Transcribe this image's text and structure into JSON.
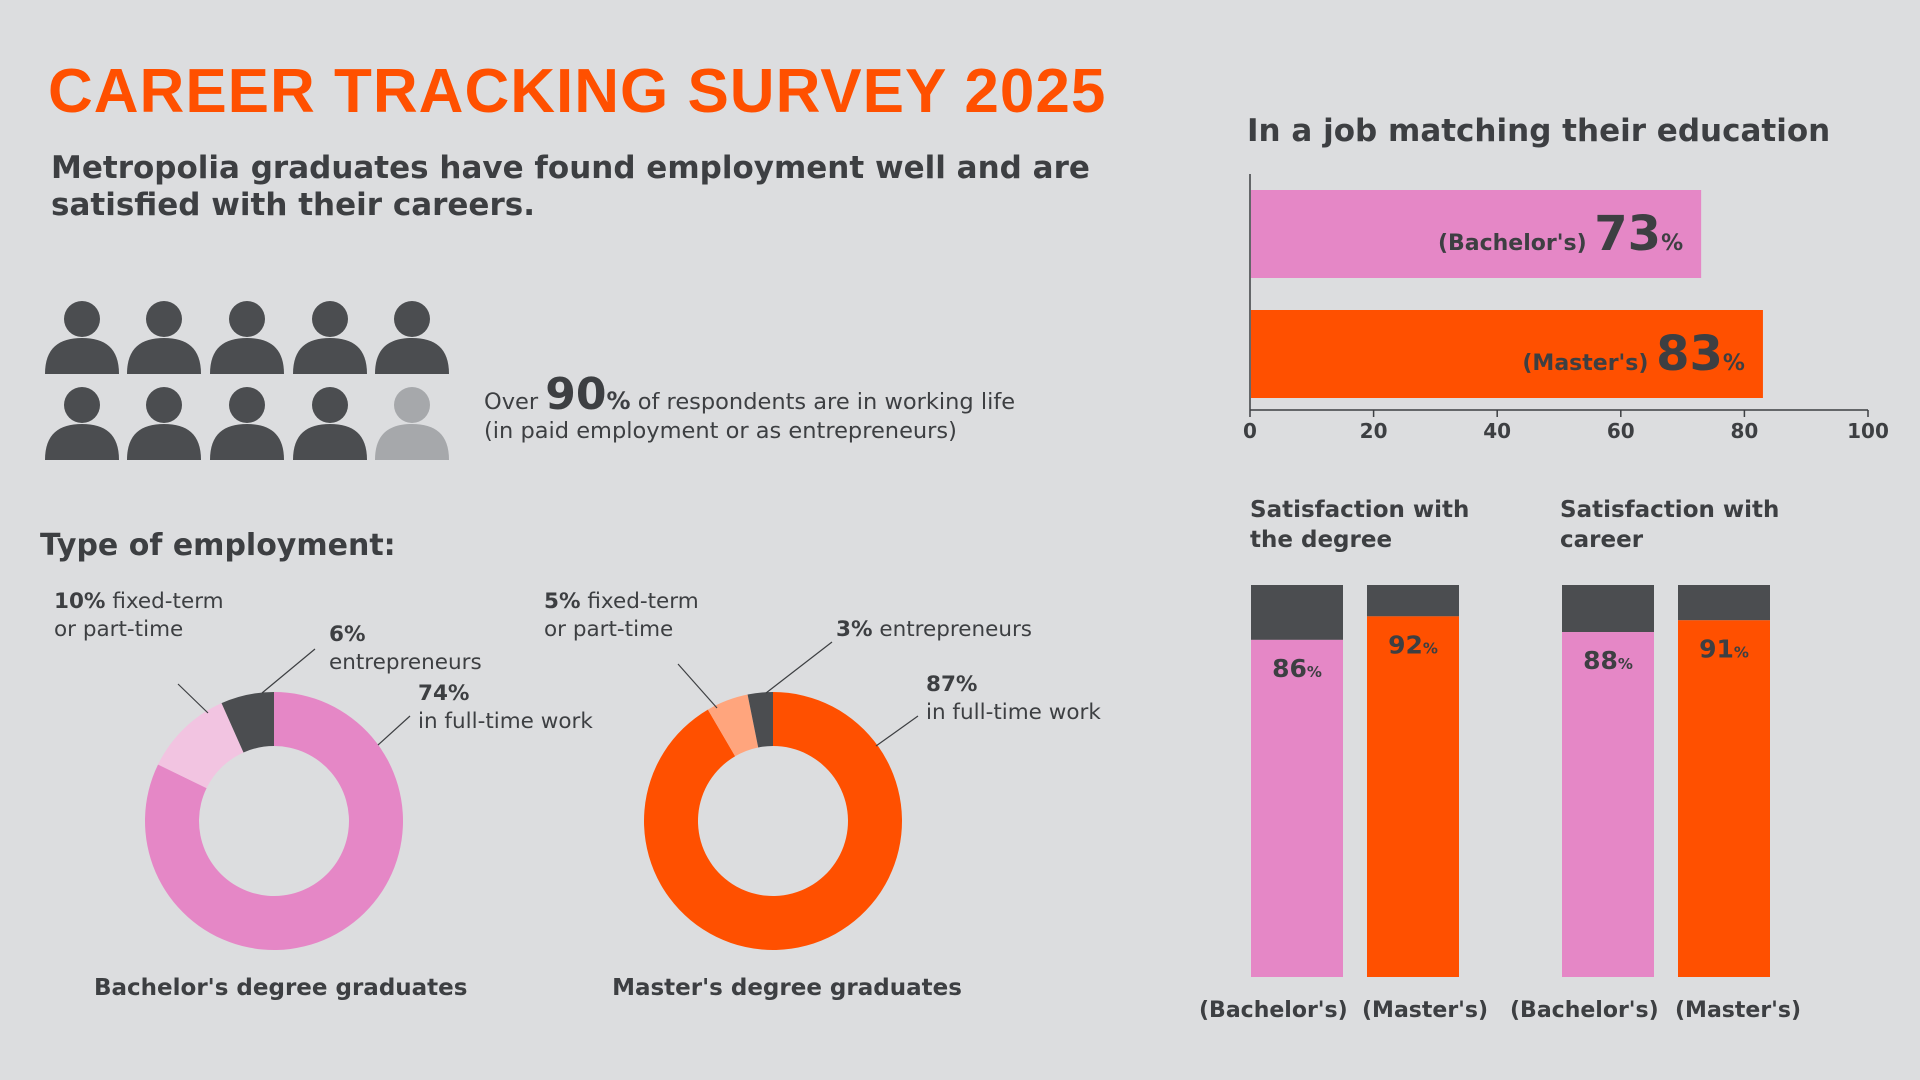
{
  "header": {
    "title": "CAREER TRACKING SURVEY 2025",
    "subtitle": "Metropolia graduates have found employment well and are satisfied with their careers."
  },
  "working_life": {
    "prefix": "Over",
    "value": "90",
    "pct": "%",
    "line1_suffix": "of respondents are in working life",
    "line2": "(in paid employment or as entrepreneurs)",
    "icons_total": 10,
    "icons_filled": 9
  },
  "employment": {
    "heading": "Type of employment:",
    "bachelor": {
      "caption": "Bachelor's degree graduates",
      "fixed_pct": "10%",
      "fixed_text1": "fixed-term",
      "fixed_text2": "or part-time",
      "entre_pct": "6%",
      "entre_text": "entrepreneurs",
      "full_pct": "74%",
      "full_text": "in full-time work"
    },
    "master": {
      "caption": "Master's degree graduates",
      "fixed_pct": "5%",
      "fixed_text1": "fixed-term",
      "fixed_text2": "or part-time",
      "entre_pct": "3%",
      "entre_text": "entrepreneurs",
      "full_pct": "87%",
      "full_text": "in full-time work"
    }
  },
  "job_match": {
    "heading": "In a job matching their education",
    "bachelor_label": "(Bachelor's)",
    "master_label": "(Master's)",
    "pct_sign": "%"
  },
  "satisfaction": {
    "degree_title_1": "Satisfaction with",
    "degree_title_2": "the degree",
    "career_title_1": "Satisfaction with",
    "career_title_2": "career",
    "bachelor_label": "(Bachelor's)",
    "master_label": "(Master's)"
  },
  "colors": {
    "orange": "#ff5000",
    "pink": "#e587c6",
    "light_pink": "#f2c4e1",
    "peach": "#ffa57d",
    "dark": "#4b4d50",
    "grey_icon": "#a6a8ab",
    "background": "#dcdddf"
  },
  "chart_data": [
    {
      "type": "pie",
      "title": "Bachelor's degree graduates",
      "categories": [
        "in full-time work",
        "fixed-term or part-time",
        "entrepreneurs"
      ],
      "values": [
        74,
        10,
        6
      ]
    },
    {
      "type": "pie",
      "title": "Master's degree graduates",
      "categories": [
        "in full-time work",
        "fixed-term or part-time",
        "entrepreneurs"
      ],
      "values": [
        87,
        5,
        3
      ]
    },
    {
      "type": "bar",
      "orientation": "horizontal",
      "title": "In a job matching their education",
      "categories": [
        "(Bachelor's)",
        "(Master's)"
      ],
      "values": [
        73,
        83
      ],
      "xlim": [
        0,
        100
      ],
      "xticks": [
        0,
        20,
        40,
        60,
        80,
        100
      ]
    },
    {
      "type": "bar",
      "stacked": true,
      "title": "Satisfaction with the degree",
      "categories": [
        "(Bachelor's)",
        "(Master's)"
      ],
      "values": [
        86,
        92
      ],
      "ylim": [
        0,
        100
      ]
    },
    {
      "type": "bar",
      "stacked": true,
      "title": "Satisfaction with career",
      "categories": [
        "(Bachelor's)",
        "(Master's)"
      ],
      "values": [
        88,
        91
      ],
      "ylim": [
        0,
        100
      ]
    }
  ]
}
